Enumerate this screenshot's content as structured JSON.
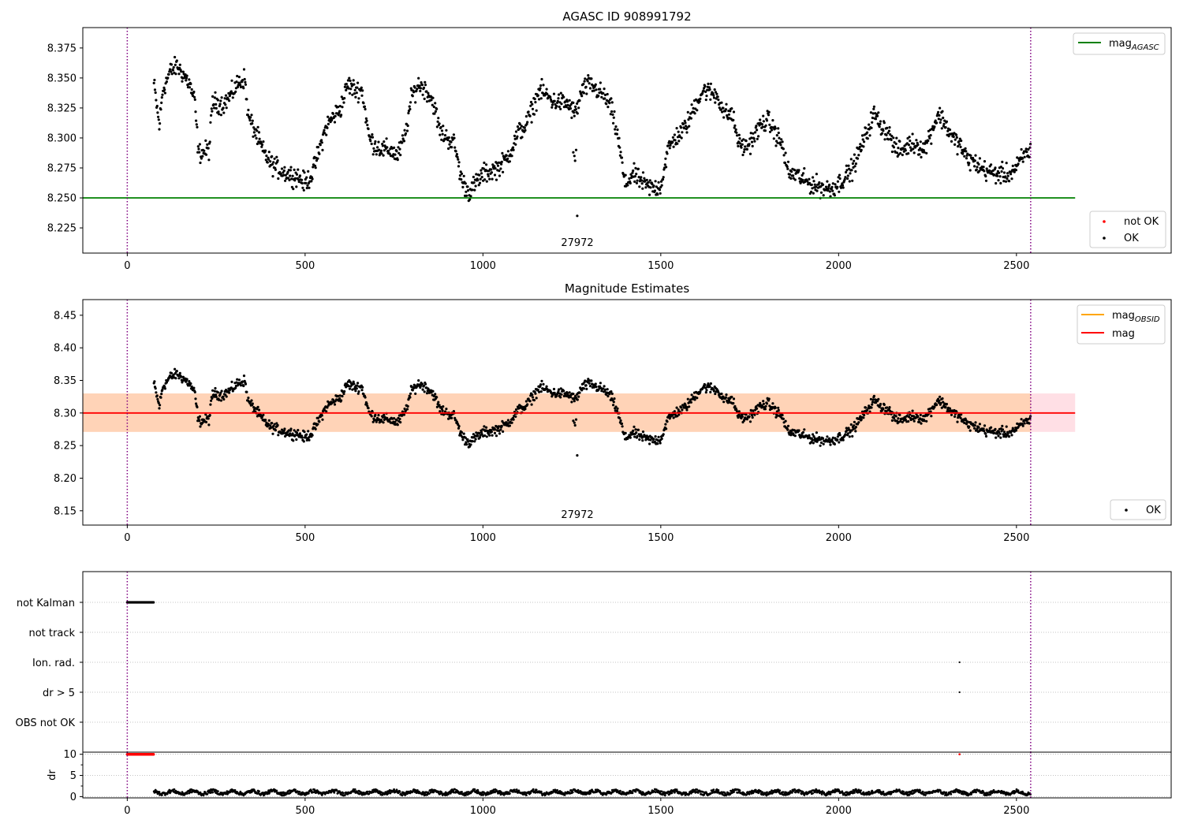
{
  "chart_data": [
    {
      "type": "scatter",
      "title": "AGASC ID 908991792",
      "xlim": [
        -125,
        2935
      ],
      "ylim": [
        8.204,
        8.392
      ],
      "yticks": [
        8.225,
        8.25,
        8.275,
        8.3,
        8.325,
        8.35,
        8.375
      ],
      "ytick_labels": [
        "8.225",
        "8.250",
        "8.275",
        "8.300",
        "8.325",
        "8.350",
        "8.375"
      ],
      "xticks": [
        0,
        500,
        1000,
        1500,
        2000,
        2500
      ],
      "xtick_labels": [
        "0",
        "500",
        "1000",
        "1500",
        "2000",
        "2500"
      ],
      "vlines": [
        0,
        2540
      ],
      "hline": {
        "name": "mag_AGASC",
        "y": 8.25,
        "x_range": [
          -125,
          2665
        ],
        "color": "#008000"
      },
      "annotation": {
        "text": "27972",
        "x": 1270
      },
      "legend_top": {
        "position": "top-right",
        "entries": [
          {
            "label": "mag",
            "sub": "AGASC",
            "color": "#008000"
          }
        ]
      },
      "legend_bottom": {
        "position": "bottom-right",
        "entries": [
          {
            "label": "not OK",
            "color": "#ff0000"
          },
          {
            "label": "OK",
            "color": "#000000"
          }
        ]
      },
      "series": [
        {
          "name": "OK",
          "color": "#000000",
          "points_kind": "mag"
        }
      ]
    },
    {
      "type": "scatter",
      "title": "Magnitude Estimates",
      "xlim": [
        -125,
        2935
      ],
      "ylim": [
        8.128,
        8.474
      ],
      "yticks": [
        8.15,
        8.2,
        8.25,
        8.3,
        8.35,
        8.4,
        8.45
      ],
      "ytick_labels": [
        "8.15",
        "8.20",
        "8.25",
        "8.30",
        "8.35",
        "8.40",
        "8.45"
      ],
      "xticks": [
        0,
        500,
        1000,
        1500,
        2000,
        2500
      ],
      "xtick_labels": [
        "0",
        "500",
        "1000",
        "1500",
        "2000",
        "2500"
      ],
      "vlines": [
        0,
        2540
      ],
      "hline": {
        "name": "mag",
        "y": 8.3,
        "x_range": [
          -125,
          2665
        ],
        "color": "#ff0000"
      },
      "band_obsid": {
        "y": [
          8.271,
          8.33
        ],
        "x_range": [
          -125,
          2540
        ],
        "color": "#ffa500"
      },
      "band_mag": {
        "y": [
          8.271,
          8.33
        ],
        "x_range": [
          -125,
          2665
        ],
        "color": "#ffc0cb"
      },
      "annotation": {
        "text": "27972",
        "x": 1270
      },
      "legend_top": {
        "position": "top-right",
        "entries": [
          {
            "label": "mag",
            "sub": "OBSID",
            "color": "#ffa500"
          },
          {
            "label": "mag",
            "sub": "",
            "color": "#ff0000"
          }
        ]
      },
      "legend_bottom": {
        "position": "bottom-right",
        "entries": [
          {
            "label": "OK",
            "color": "#000000"
          }
        ]
      },
      "series": [
        {
          "name": "OK",
          "color": "#000000",
          "points_kind": "mag"
        }
      ]
    },
    {
      "type": "scatter",
      "title": "",
      "xlim": [
        -125,
        2935
      ],
      "categories": [
        "not Kalman",
        "not track",
        "Ion. rad.",
        "dr > 5",
        "OBS not OK"
      ],
      "flags": {
        "not Kalman": {
          "x_range": [
            0,
            75
          ]
        },
        "Ion. rad.": {
          "x": [
            2340
          ]
        },
        "dr > 5": {
          "x": [
            2340
          ]
        }
      },
      "vlines": [
        0,
        2540
      ]
    },
    {
      "type": "scatter",
      "title": "",
      "xlim": [
        -125,
        2935
      ],
      "ylim": [
        -0.3,
        10.5
      ],
      "yticks": [
        0,
        5,
        10
      ],
      "ytick_labels": [
        "0",
        "5",
        "10"
      ],
      "ylabel": "dr",
      "xticks": [
        0,
        500,
        1000,
        1500,
        2000,
        2500
      ],
      "xtick_labels": [
        "0",
        "500",
        "1000",
        "1500",
        "2000",
        "2500"
      ],
      "vlines": [
        0,
        2540
      ],
      "series": [
        {
          "name": "dr",
          "color": "#000000",
          "points_kind": "dr",
          "x_range": [
            75,
            2540
          ],
          "typical": 1.0
        },
        {
          "name": "dr clipped",
          "color": "#ff0000",
          "x_range": [
            0,
            75
          ],
          "y": 10,
          "extra_x": [
            2340
          ]
        }
      ]
    }
  ],
  "light_curve": {
    "x_start": 75,
    "x_end": 2540,
    "step": 1.5,
    "knots": [
      [
        75,
        8.345
      ],
      [
        90,
        8.31
      ],
      [
        100,
        8.34
      ],
      [
        120,
        8.355
      ],
      [
        140,
        8.36
      ],
      [
        160,
        8.352
      ],
      [
        175,
        8.345
      ],
      [
        190,
        8.33
      ],
      [
        200,
        8.287
      ],
      [
        230,
        8.29
      ],
      [
        240,
        8.33
      ],
      [
        270,
        8.328
      ],
      [
        290,
        8.335
      ],
      [
        310,
        8.345
      ],
      [
        330,
        8.35
      ],
      [
        340,
        8.318
      ],
      [
        360,
        8.305
      ],
      [
        380,
        8.29
      ],
      [
        400,
        8.28
      ],
      [
        420,
        8.275
      ],
      [
        450,
        8.27
      ],
      [
        480,
        8.268
      ],
      [
        500,
        8.262
      ],
      [
        520,
        8.27
      ],
      [
        540,
        8.29
      ],
      [
        560,
        8.31
      ],
      [
        580,
        8.318
      ],
      [
        600,
        8.325
      ],
      [
        620,
        8.345
      ],
      [
        640,
        8.34
      ],
      [
        660,
        8.34
      ],
      [
        680,
        8.3
      ],
      [
        700,
        8.293
      ],
      [
        720,
        8.29
      ],
      [
        740,
        8.29
      ],
      [
        760,
        8.285
      ],
      [
        780,
        8.3
      ],
      [
        800,
        8.335
      ],
      [
        820,
        8.345
      ],
      [
        840,
        8.34
      ],
      [
        860,
        8.33
      ],
      [
        880,
        8.305
      ],
      [
        900,
        8.3
      ],
      [
        920,
        8.295
      ],
      [
        940,
        8.265
      ],
      [
        960,
        8.255
      ],
      [
        980,
        8.262
      ],
      [
        1000,
        8.27
      ],
      [
        1020,
        8.272
      ],
      [
        1040,
        8.275
      ],
      [
        1060,
        8.28
      ],
      [
        1080,
        8.29
      ],
      [
        1100,
        8.305
      ],
      [
        1120,
        8.31
      ],
      [
        1140,
        8.325
      ],
      [
        1160,
        8.34
      ],
      [
        1180,
        8.335
      ],
      [
        1200,
        8.33
      ],
      [
        1220,
        8.33
      ],
      [
        1240,
        8.328
      ],
      [
        1260,
        8.32
      ],
      [
        1280,
        8.34
      ],
      [
        1300,
        8.345
      ],
      [
        1320,
        8.34
      ],
      [
        1340,
        8.335
      ],
      [
        1360,
        8.325
      ],
      [
        1380,
        8.3
      ],
      [
        1400,
        8.26
      ],
      [
        1420,
        8.27
      ],
      [
        1440,
        8.265
      ],
      [
        1460,
        8.26
      ],
      [
        1480,
        8.258
      ],
      [
        1500,
        8.26
      ],
      [
        1520,
        8.29
      ],
      [
        1540,
        8.3
      ],
      [
        1560,
        8.305
      ],
      [
        1580,
        8.315
      ],
      [
        1600,
        8.33
      ],
      [
        1620,
        8.34
      ],
      [
        1640,
        8.338
      ],
      [
        1660,
        8.335
      ],
      [
        1680,
        8.32
      ],
      [
        1700,
        8.32
      ],
      [
        1720,
        8.295
      ],
      [
        1740,
        8.292
      ],
      [
        1760,
        8.3
      ],
      [
        1780,
        8.31
      ],
      [
        1800,
        8.315
      ],
      [
        1820,
        8.305
      ],
      [
        1840,
        8.295
      ],
      [
        1860,
        8.27
      ],
      [
        1880,
        8.27
      ],
      [
        1900,
        8.265
      ],
      [
        1920,
        8.262
      ],
      [
        1940,
        8.26
      ],
      [
        1960,
        8.258
      ],
      [
        1980,
        8.258
      ],
      [
        2000,
        8.262
      ],
      [
        2020,
        8.268
      ],
      [
        2040,
        8.275
      ],
      [
        2060,
        8.29
      ],
      [
        2080,
        8.305
      ],
      [
        2100,
        8.32
      ],
      [
        2120,
        8.31
      ],
      [
        2140,
        8.305
      ],
      [
        2160,
        8.29
      ],
      [
        2180,
        8.29
      ],
      [
        2200,
        8.295
      ],
      [
        2220,
        8.295
      ],
      [
        2240,
        8.29
      ],
      [
        2260,
        8.305
      ],
      [
        2280,
        8.32
      ],
      [
        2300,
        8.312
      ],
      [
        2320,
        8.3
      ],
      [
        2340,
        8.295
      ],
      [
        2360,
        8.283
      ],
      [
        2380,
        8.28
      ],
      [
        2400,
        8.275
      ],
      [
        2420,
        8.272
      ],
      [
        2440,
        8.27
      ],
      [
        2460,
        8.27
      ],
      [
        2480,
        8.27
      ],
      [
        2500,
        8.275
      ],
      [
        2520,
        8.285
      ],
      [
        2540,
        8.29
      ]
    ],
    "outliers": [
      [
        1257,
        8.285
      ],
      [
        1262,
        8.29
      ],
      [
        1259,
        8.281
      ],
      [
        1254,
        8.288
      ],
      [
        1265,
        8.235
      ]
    ]
  }
}
